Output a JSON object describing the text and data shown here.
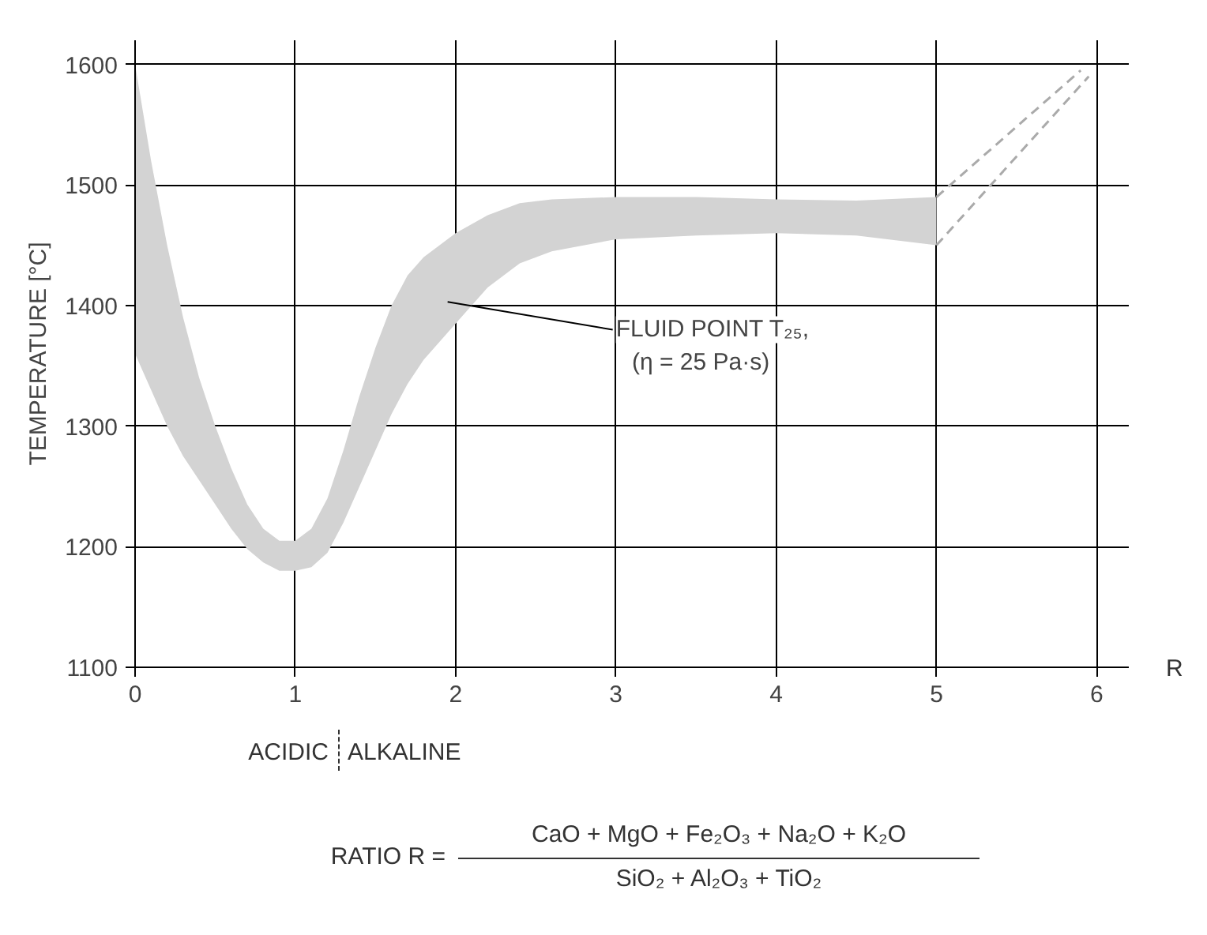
{
  "chart_data": {
    "type": "area",
    "xlabel": "R",
    "ylabel": "TEMPERATURE [°C]",
    "series": [
      {
        "color": "#d3d3d3",
        "x": [
          0,
          0.1,
          0.2,
          0.3,
          0.4,
          0.5,
          0.6,
          0.7,
          0.8,
          0.9,
          1.0,
          1.1,
          1.2,
          1.3,
          1.4,
          1.5,
          1.6,
          1.7,
          1.8,
          1.9,
          2.0,
          2.2,
          2.4,
          2.6,
          3.0,
          3.5,
          4.0,
          4.5,
          5.0
        ],
        "values": [
          null,
          null,
          null,
          null,
          null,
          null,
          null,
          null,
          null,
          null,
          null,
          null,
          null,
          null,
          null,
          null,
          null,
          null,
          null,
          null,
          null,
          null,
          null,
          null,
          null,
          null,
          null,
          null,
          null
        ],
        "upper": [
          1600,
          1520,
          1450,
          1390,
          1340,
          1300,
          1265,
          1235,
          1215,
          1205,
          1205,
          1215,
          1240,
          1280,
          1325,
          1365,
          1400,
          1425,
          1440,
          1450,
          1460,
          1475,
          1485,
          1488,
          1490,
          1490,
          1488,
          1487,
          1490
        ],
        "lower": [
          1360,
          1330,
          1300,
          1275,
          1255,
          1235,
          1215,
          1198,
          1187,
          1180,
          1180,
          1183,
          1195,
          1220,
          1250,
          1280,
          1310,
          1335,
          1355,
          1370,
          1385,
          1415,
          1435,
          1445,
          1455,
          1458,
          1460,
          1458,
          1450
        ]
      },
      {
        "type": "line",
        "line_style": "dashed",
        "color": "#aaaaaa",
        "x": [
          5,
          5.9
        ],
        "values": [
          1490,
          1595
        ]
      },
      {
        "type": "line",
        "line_style": "dashed",
        "color": "#aaaaaa",
        "x": [
          5,
          5.95
        ],
        "values": [
          1450,
          1590
        ]
      }
    ],
    "xlim": [
      0,
      6.2
    ],
    "ylim": [
      1100,
      1620
    ],
    "xticks": [
      0,
      1,
      2,
      3,
      4,
      5,
      6
    ],
    "yticks": [
      1100,
      1200,
      1300,
      1400,
      1500,
      1600
    ],
    "grid": true,
    "annotations": [
      "FLUID POINT T₂₅,\n(η = 25 Pa·s)",
      "ACIDIC",
      "ALKALINE",
      "RATIO R =",
      "CaO + MgO + Fe₂O₃ + Na₂O + K₂O",
      "SiO₂ + Al₂O₃ + TiO₂"
    ]
  }
}
